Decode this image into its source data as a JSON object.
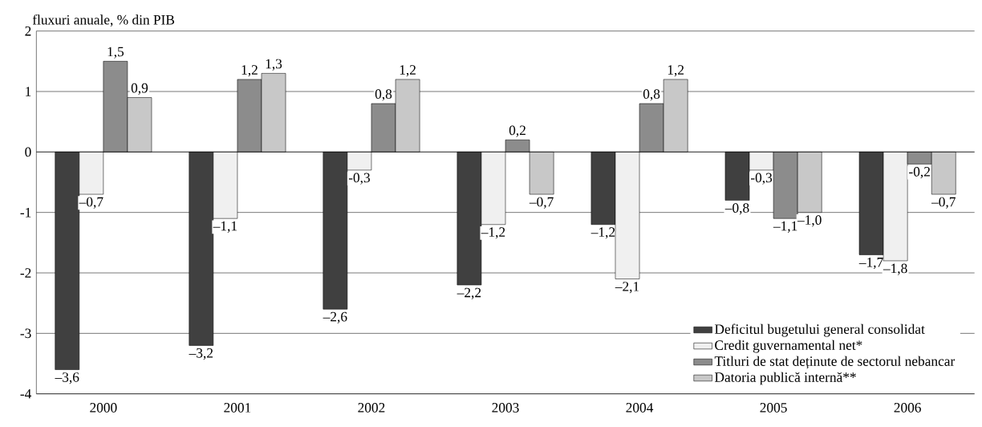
{
  "chart_data": {
    "type": "bar",
    "ylabel": "fluxuri anuale, % din PIB",
    "categories": [
      "2000",
      "2001",
      "2002",
      "2003",
      "2004",
      "2005",
      "2006"
    ],
    "ylim": [
      -4,
      2
    ],
    "yticks": [
      -4,
      -3,
      -2,
      -1,
      0,
      1,
      2
    ],
    "grid": "y",
    "legend": "bottom right",
    "series": [
      {
        "name": "Deficitul bugetului general consolidat",
        "color": "#404040",
        "values": [
          -3.6,
          -3.2,
          -2.6,
          -2.2,
          -1.2,
          -0.8,
          -1.7
        ],
        "value_labels": [
          "–3,6",
          "–3,2",
          "–2,6",
          "–2,2",
          "–1,2",
          "–0,8",
          "–1,7"
        ]
      },
      {
        "name": "Credit guvernamental net*",
        "color": "#f0f0f0",
        "values": [
          -0.7,
          -1.1,
          -0.3,
          -1.2,
          -2.1,
          -0.3,
          -1.8
        ],
        "value_labels": [
          "–0,7",
          "–1,1",
          "-0,3",
          "–1,2",
          "–2,1",
          "-0,3",
          "–1,8"
        ]
      },
      {
        "name": "Titluri de stat deținute de sectorul nebancar",
        "color": "#8c8c8c",
        "values": [
          1.5,
          1.2,
          0.8,
          0.2,
          0.8,
          -1.1,
          -0.2
        ],
        "value_labels": [
          "1,5",
          "1,2",
          "0,8",
          "0,2",
          "0,8",
          "–1,1",
          "-0,2"
        ]
      },
      {
        "name": "Datoria publică internă**",
        "color": "#c8c8c8",
        "values": [
          0.9,
          1.3,
          1.2,
          -0.7,
          1.2,
          -1.0,
          -0.7
        ],
        "value_labels": [
          "0,9",
          "1,3",
          "1,2",
          "–0,7",
          "1,2",
          "–1,0",
          "–0,7"
        ]
      }
    ]
  }
}
